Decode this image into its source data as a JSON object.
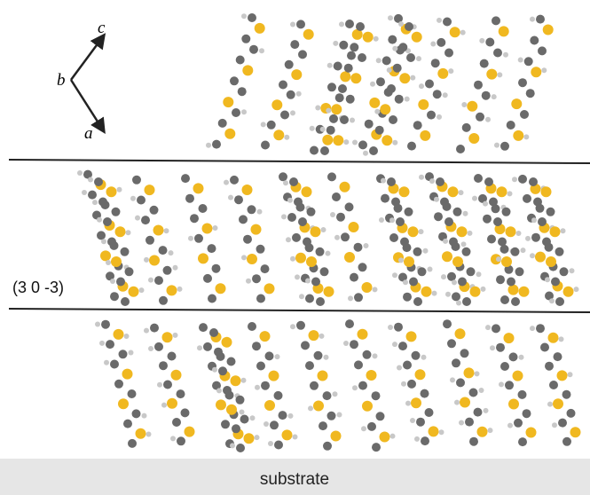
{
  "axes": {
    "c": "c",
    "b": "b",
    "a": "a"
  },
  "plane_label": "(3 0 -3)",
  "substrate_label": "substrate"
}
